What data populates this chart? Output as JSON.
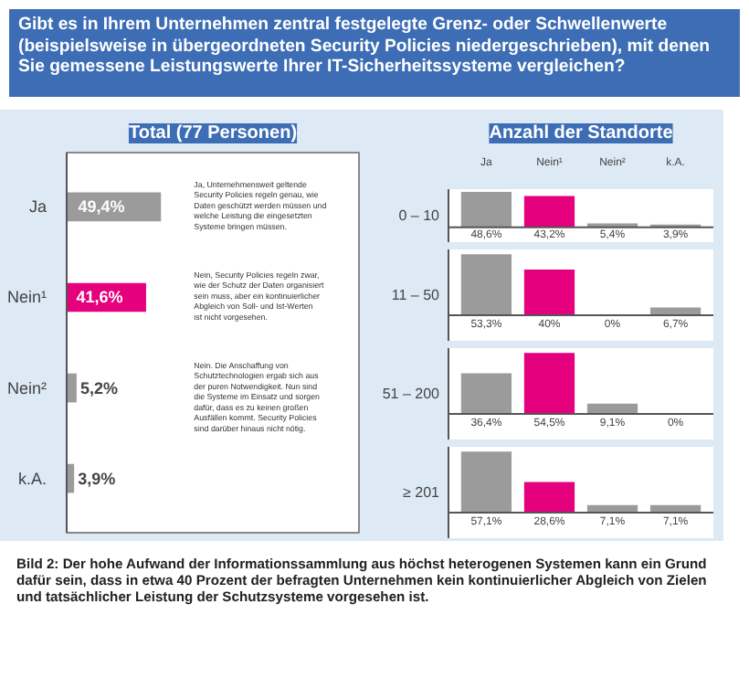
{
  "chart_data": [
    {
      "type": "bar",
      "orientation": "horizontal",
      "title": "Gibt es in Ihrem Unternehmen zentral festgelegte Grenz- oder Schwellenwerte (beispielsweise in übergeordneten Security Policies niedergeschrieben), mit denen Sie gemessene Leistungswerte Ihrer IT-Sicherheitssysteme vergleichen?",
      "subtitle": "Total (77 Personen)",
      "categories": [
        "Ja",
        "Nein¹",
        "Nein²",
        "k.A."
      ],
      "values": [
        49.4,
        41.6,
        5.2,
        3.9
      ],
      "colors": [
        "#9b9b9b",
        "#e5007d",
        "#9b9b9b",
        "#9b9b9b"
      ],
      "value_labels": [
        "49,4%",
        "41,6%",
        "5,2%",
        "3,9%"
      ],
      "tick_labels": "y",
      "annotations": [
        "Ja, Unternehmensweit geltende Security Policies regeln genau, wie Daten geschützt werden müssen und welche Leistung die eingesetzten Systeme bringen müssen.",
        "Nein, Security Policies regeln zwar, wie der Schutz der Daten organisiert sein muss, aber ein kontinuierlicher Abgleich von Soll- und Ist-Werten ist nicht vorgesehen.",
        "Nein. Die Anschaffung von Schutztechnologien ergab sich aus der puren Notwendigkeit. Nun sind die Systeme im Einsatz und sorgen dafür, dass es zu keinen großen Ausfällen kommt. Security Policies sind darüber hinaus nicht nötig.",
        "Bild 2: Der hohe Aufwand der Informationssammlung aus höchst heterogenen Systemen kann ein Grund dafür sein, dass in etwa 40 Prozent der befragten Unternehmen kein kontinuierlicher Abgleich von Zielen und tatsächlicher Leistung der Schutzsysteme vorgesehen ist."
      ]
    },
    {
      "type": "bar",
      "title": "Anzahl der Standorte",
      "ylabel": "0 – 10",
      "categories": [
        "Ja",
        "Nein¹",
        "Nein²",
        "k.A."
      ],
      "values": [
        48.6,
        43.2,
        5.4,
        3.9
      ],
      "colors": [
        "#9b9b9b",
        "#e5007d",
        "#9b9b9b",
        "#9b9b9b"
      ],
      "value_labels": [
        "48,6%",
        "43,2%",
        "5,4%",
        "3,9%"
      ],
      "tick_labels": "x"
    },
    {
      "type": "bar",
      "ylabel": "11 – 50",
      "categories": [
        "Ja",
        "Nein¹",
        "Nein²",
        "k.A."
      ],
      "values": [
        53.3,
        40,
        0,
        6.7
      ],
      "colors": [
        "#9b9b9b",
        "#e5007d",
        "#9b9b9b",
        "#9b9b9b"
      ],
      "value_labels": [
        "53,3%",
        "40%",
        "0%",
        "6,7%"
      ],
      "tick_labels": false
    },
    {
      "type": "bar",
      "ylabel": "51 – 200",
      "categories": [
        "Ja",
        "Nein¹",
        "Nein²",
        "k.A."
      ],
      "values": [
        36.4,
        54.5,
        9.1,
        0
      ],
      "colors": [
        "#9b9b9b",
        "#e5007d",
        "#9b9b9b",
        "#9b9b9b"
      ],
      "value_labels": [
        "36,4%",
        "54,5%",
        "9,1%",
        "0%"
      ],
      "tick_labels": false
    },
    {
      "type": "bar",
      "ylabel": "≥ 201",
      "categories": [
        "Ja",
        "Nein¹",
        "Nein²",
        "k.A."
      ],
      "values": [
        57.1,
        28.6,
        7.1,
        7.1
      ],
      "colors": [
        "#9b9b9b",
        "#e5007d",
        "#9b9b9b",
        "#9b9b9b"
      ],
      "value_labels": [
        "57,1%",
        "28,6%",
        "7,1%",
        "7,1%"
      ],
      "tick_labels": false
    }
  ]
}
